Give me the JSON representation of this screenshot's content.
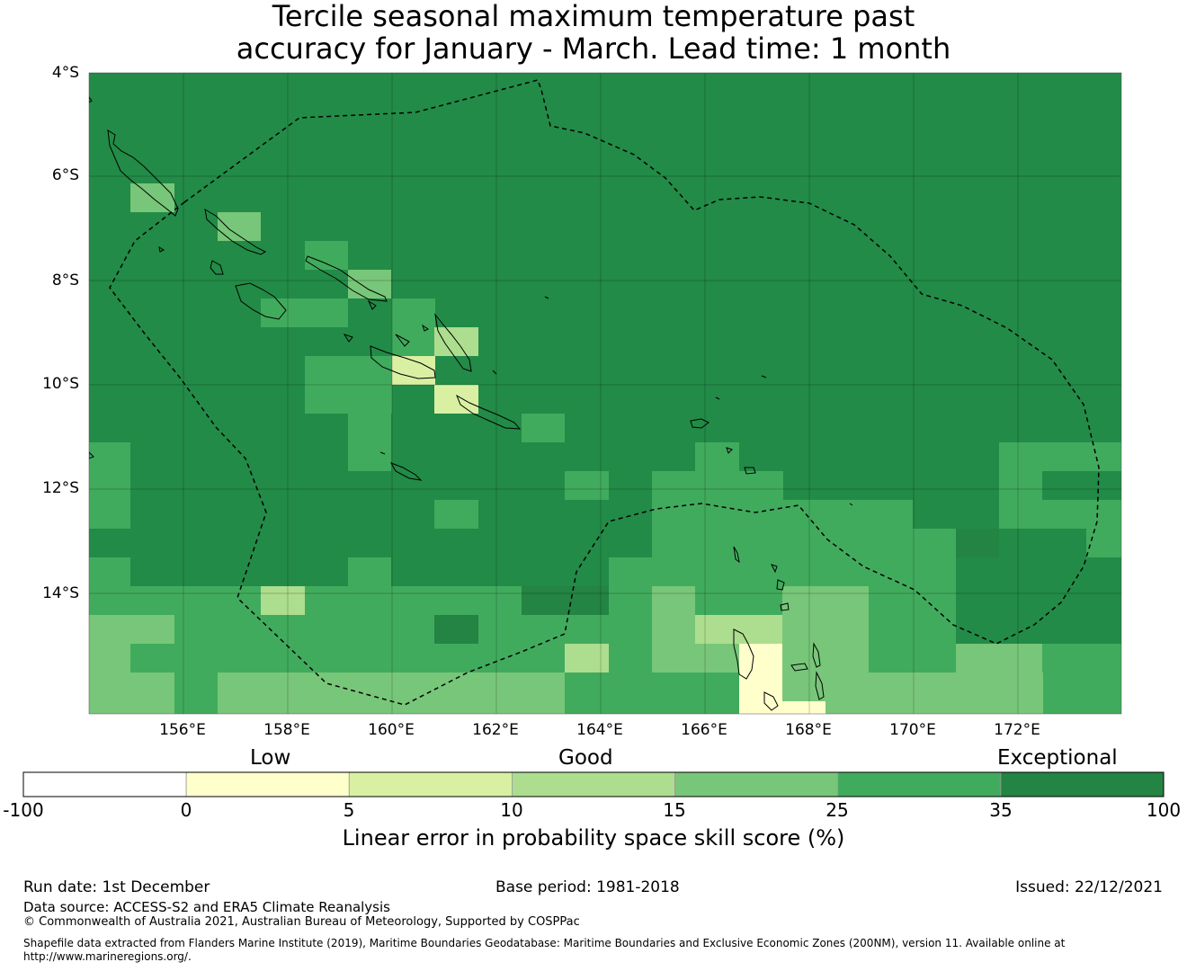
{
  "title": {
    "line1": "Tercile seasonal maximum temperature past",
    "line2": "accuracy for January - March. Lead time: 1 month"
  },
  "map": {
    "lat_labels": [
      "4°S",
      "6°S",
      "8°S",
      "10°S",
      "12°S",
      "14°S"
    ],
    "lon_labels": [
      "156°E",
      "158°E",
      "160°E",
      "162°E",
      "164°E",
      "166°E",
      "168°E",
      "170°E",
      "172°E"
    ],
    "base_color": "#228b47"
  },
  "colorbar": {
    "category_labels": {
      "low": "Low",
      "good": "Good",
      "exceptional": "Exceptional"
    },
    "ticks": [
      "-100",
      "0",
      "5",
      "10",
      "15",
      "25",
      "35",
      "100"
    ],
    "colors": [
      "#ffffff",
      "#ffffcc",
      "#d9f0a3",
      "#addd8e",
      "#78c679",
      "#41ab5d",
      "#238443"
    ],
    "title": "Linear error in probability space skill score (%)"
  },
  "footer": {
    "run_date": "Run date: 1st December",
    "base_period": "Base period: 1981-2018",
    "issued": "Issued: 22/12/2021",
    "data_source": "Data source: ACCESS-S2 and ERA5 Climate Reanalysis",
    "copyright": "© Commonwealth of Australia 2021, Australian Bureau of Meteorology, Supported by COSPPac",
    "shapefile_line1": "Shapefile data extracted from Flanders Marine Institute (2019), Maritime Boundaries Geodatabase: Maritime Boundaries and Exclusive Economic Zones (200NM), version 11. Available online at",
    "shapefile_line2": "http://www.marineregions.org/."
  }
}
